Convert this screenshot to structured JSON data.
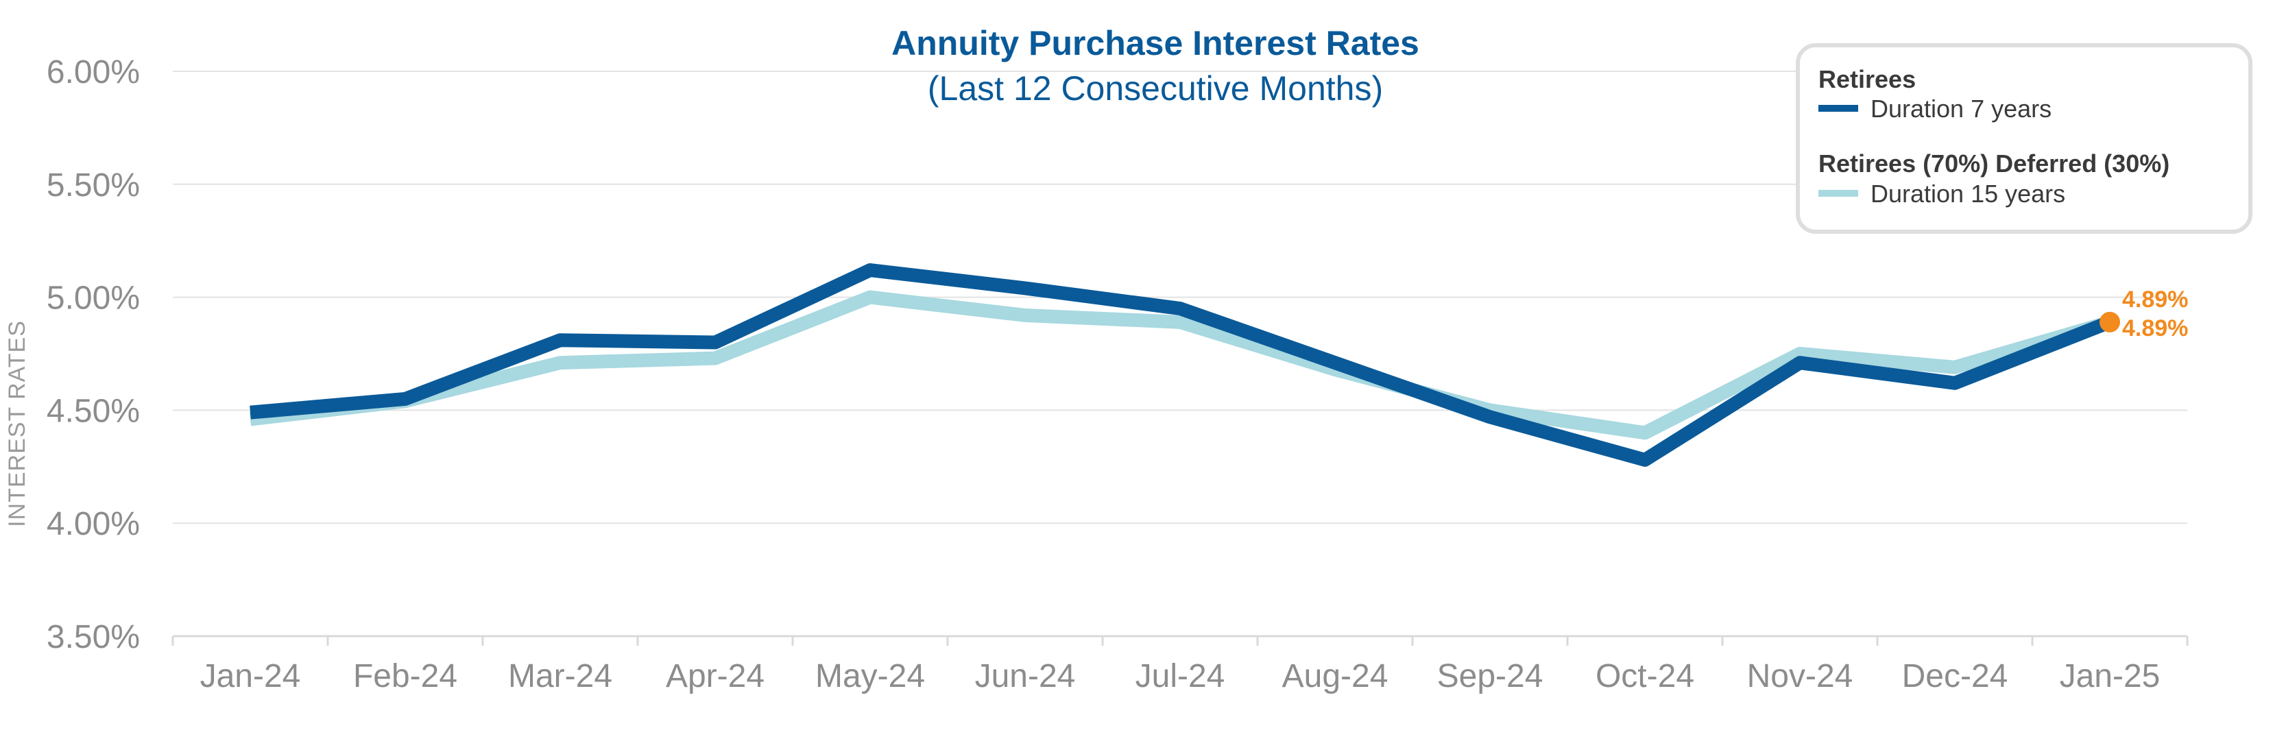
{
  "chart_data": {
    "type": "line",
    "title": "Annuity Purchase Interest Rates",
    "subtitle": "(Last 12 Consecutive Months)",
    "xlabel": "",
    "ylabel": "INTEREST RATES",
    "categories": [
      "Jan-24",
      "Feb-24",
      "Mar-24",
      "Apr-24",
      "May-24",
      "Jun-24",
      "Jul-24",
      "Aug-24",
      "Sep-24",
      "Oct-24",
      "Nov-24",
      "Dec-24",
      "Jan-25"
    ],
    "ylim": [
      3.5,
      6.0
    ],
    "yticks": [
      {
        "value": 3.5,
        "label": "3.50%"
      },
      {
        "value": 4.0,
        "label": "4.00%"
      },
      {
        "value": 4.5,
        "label": "4.50%"
      },
      {
        "value": 5.0,
        "label": "5.00%"
      },
      {
        "value": 5.5,
        "label": "5.50%"
      },
      {
        "value": 6.0,
        "label": "6.00%"
      }
    ],
    "grid": true,
    "legend_position": "top-right",
    "series": [
      {
        "name": "Retirees",
        "description": "Duration 7 years",
        "color": "#0a5a99",
        "values": [
          4.49,
          4.55,
          4.81,
          4.8,
          5.12,
          5.04,
          4.95,
          4.71,
          4.47,
          4.28,
          4.71,
          4.62,
          4.89
        ],
        "end_label": "4.89%"
      },
      {
        "name": "Retirees (70%) Deferred (30%)",
        "description": "Duration 15 years",
        "color": "#a8d8e0",
        "values": [
          4.46,
          4.54,
          4.71,
          4.73,
          5.0,
          4.92,
          4.89,
          4.68,
          4.5,
          4.4,
          4.75,
          4.69,
          4.89
        ],
        "end_label": "4.89%"
      }
    ]
  },
  "colors": {
    "title": "#0a5a99",
    "highlight": "#f28a1e",
    "grid": "#e3e3e3",
    "legend_border": "#dedede"
  }
}
